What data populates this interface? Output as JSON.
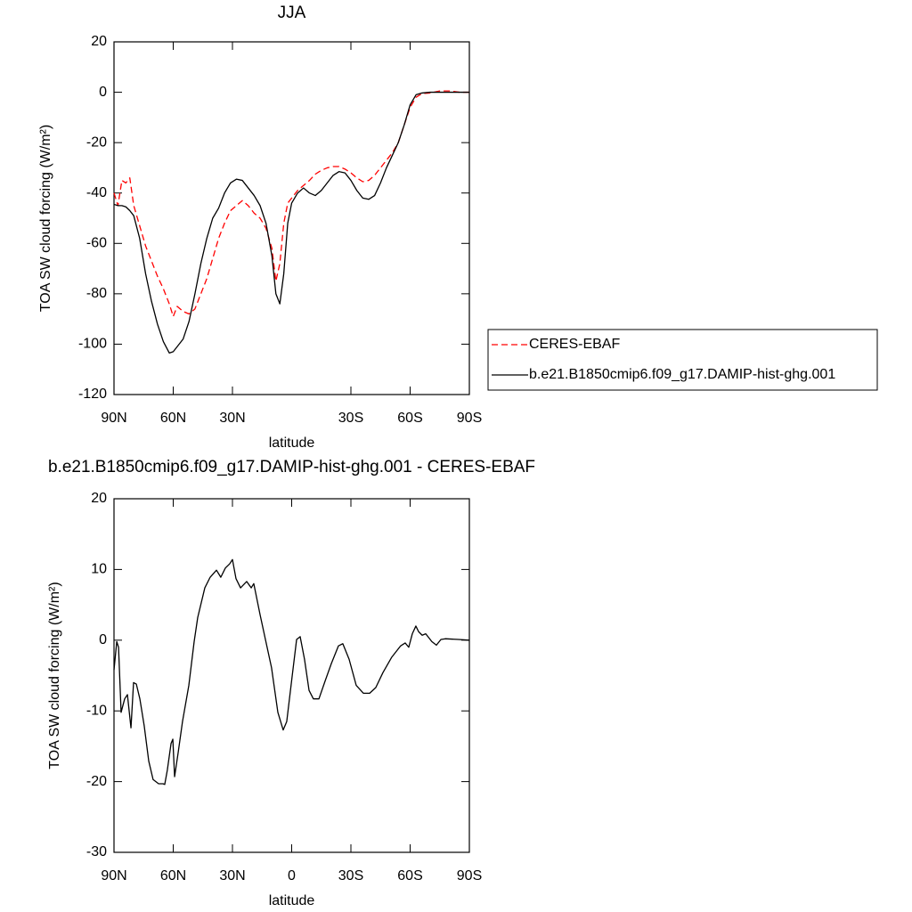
{
  "chart_data": [
    {
      "type": "line",
      "title": "JJA",
      "xlabel": "latitude",
      "ylabel": "TOA SW cloud forcing (W/m²)",
      "x": [
        90,
        88,
        86,
        84,
        82,
        80,
        77,
        74,
        71,
        68,
        65,
        62,
        60,
        58,
        55,
        52,
        49,
        46,
        43,
        40,
        37,
        34,
        31,
        28,
        25,
        22,
        19,
        16,
        13,
        10,
        8,
        6,
        4,
        2,
        0,
        -3,
        -6,
        -9,
        -12,
        -15,
        -18,
        -21,
        -24,
        -27,
        -30,
        -33,
        -36,
        -39,
        -42,
        -45,
        -48,
        -51,
        -54,
        -57,
        -60,
        -63,
        -66,
        -70,
        -75,
        -80,
        -85,
        -90
      ],
      "series": [
        {
          "name": "CERES-EBAF",
          "color": "#ff0000",
          "dashed": true,
          "values": [
            -40,
            -45,
            -35,
            -36,
            -34,
            -45,
            -53,
            -61,
            -67,
            -73,
            -78,
            -84,
            -89,
            -85,
            -87,
            -88,
            -86,
            -80,
            -74,
            -66,
            -58,
            -52,
            -47,
            -45,
            -43,
            -45,
            -48,
            -50,
            -54,
            -62,
            -75,
            -68,
            -52,
            -44,
            -42,
            -39,
            -37,
            -35,
            -32.5,
            -31,
            -30,
            -29.5,
            -29.5,
            -30.5,
            -32,
            -34,
            -35.5,
            -35,
            -33,
            -30,
            -27,
            -24,
            -20,
            -13,
            -6,
            -2,
            -0.5,
            -0.3,
            0.5,
            0.5,
            0,
            0
          ]
        },
        {
          "name": "b.e21.B1850cmip6.f09_g17.DAMIP-hist-ghg.001",
          "color": "#000000",
          "dashed": false,
          "values": [
            -44.5,
            -45,
            -45,
            -45.5,
            -47,
            -49,
            -58,
            -72,
            -83,
            -92,
            -99,
            -103.5,
            -103,
            -101,
            -98,
            -91,
            -80,
            -68,
            -58,
            -50,
            -46,
            -40,
            -36,
            -34.5,
            -35,
            -38,
            -41,
            -45,
            -52,
            -65,
            -80,
            -84,
            -72,
            -52,
            -44,
            -40,
            -38,
            -40,
            -41,
            -39,
            -36,
            -33,
            -31.5,
            -32,
            -35,
            -39,
            -42,
            -42.5,
            -41,
            -36,
            -30,
            -25,
            -20,
            -13,
            -5,
            -1,
            -0.3,
            0,
            0,
            0,
            0,
            0
          ]
        }
      ],
      "xlim": [
        90,
        -90
      ],
      "xticks": [
        {
          "value": 90,
          "label": "90N"
        },
        {
          "value": 60,
          "label": "60N"
        },
        {
          "value": 30,
          "label": "30N"
        },
        {
          "value": -30,
          "label": "30S"
        },
        {
          "value": -60,
          "label": "60S"
        },
        {
          "value": -90,
          "label": "90S"
        }
      ],
      "ylim": [
        -120,
        20
      ],
      "yticks": [
        20,
        0,
        -20,
        -40,
        -60,
        -80,
        -100,
        -120
      ]
    },
    {
      "type": "line",
      "title": "b.e21.B1850cmip6.f09_g17.DAMIP-hist-ghg.001 - CERES-EBAF",
      "xlabel": "latitude",
      "ylabel": "TOA SW cloud forcing (W/m²)",
      "x": [
        90,
        88.6,
        87.7,
        86.4,
        84.6,
        83.2,
        81.4,
        80.1,
        78.7,
        76.9,
        74.7,
        72.4,
        70.2,
        67.4,
        65.2,
        64.3,
        63,
        61.1,
        60.2,
        59.3,
        57.5,
        55.3,
        52.1,
        49.4,
        47.6,
        44,
        41.3,
        38.1,
        35.9,
        33.6,
        31.4,
        30,
        28.2,
        25.9,
        22.8,
        20.5,
        19.2,
        16,
        13.3,
        10.2,
        7,
        4.3,
        2.5,
        -0.2,
        -2.5,
        -4.3,
        -6.5,
        -8.8,
        -11,
        -13.8,
        -16.9,
        -20.1,
        -23.7,
        -25.9,
        -29.1,
        -32.7,
        -36.3,
        -39.5,
        -42.6,
        -46.2,
        -50.7,
        -55.2,
        -57.5,
        -59.3,
        -61.1,
        -62.9,
        -64.3,
        -66.1,
        -67.9,
        -71,
        -73.3,
        -75.6,
        -77.8,
        -84.6,
        -90
      ],
      "values": [
        -4.2,
        -0.2,
        -1,
        -10.2,
        -8.3,
        -7.7,
        -12.4,
        -6,
        -6.2,
        -8.3,
        -12.1,
        -17.1,
        -19.7,
        -20.3,
        -20.3,
        -20.4,
        -18.4,
        -14.6,
        -14,
        -19.3,
        -15.9,
        -11.5,
        -6.4,
        -0.2,
        3.2,
        7.4,
        8.9,
        9.9,
        8.9,
        10.2,
        10.8,
        11.4,
        8.7,
        7.4,
        8.3,
        7.4,
        8,
        3.6,
        0.1,
        -3.9,
        -10.2,
        -12.7,
        -11.5,
        -5.2,
        0.1,
        0.5,
        -2.7,
        -7.1,
        -8.3,
        -8.3,
        -5.8,
        -3.3,
        -0.8,
        -0.5,
        -2.7,
        -6.4,
        -7.5,
        -7.5,
        -6.7,
        -4.6,
        -2.4,
        -0.8,
        -0.4,
        -1,
        0.9,
        2,
        1.2,
        0.7,
        0.9,
        -0.2,
        -0.7,
        0.1,
        0.2,
        0.1,
        0
      ],
      "color": "#000000",
      "xlim": [
        90,
        -90
      ],
      "xticks": [
        {
          "value": 90,
          "label": "90N"
        },
        {
          "value": 60,
          "label": "60N"
        },
        {
          "value": 30,
          "label": "30N"
        },
        0,
        {
          "value": -30,
          "label": "30S"
        },
        {
          "value": -60,
          "label": "60S"
        },
        {
          "value": -90,
          "label": "90S"
        }
      ],
      "ylim": [
        -30,
        20
      ],
      "yticks": [
        20,
        10,
        0,
        -10,
        -20,
        -30
      ]
    }
  ]
}
